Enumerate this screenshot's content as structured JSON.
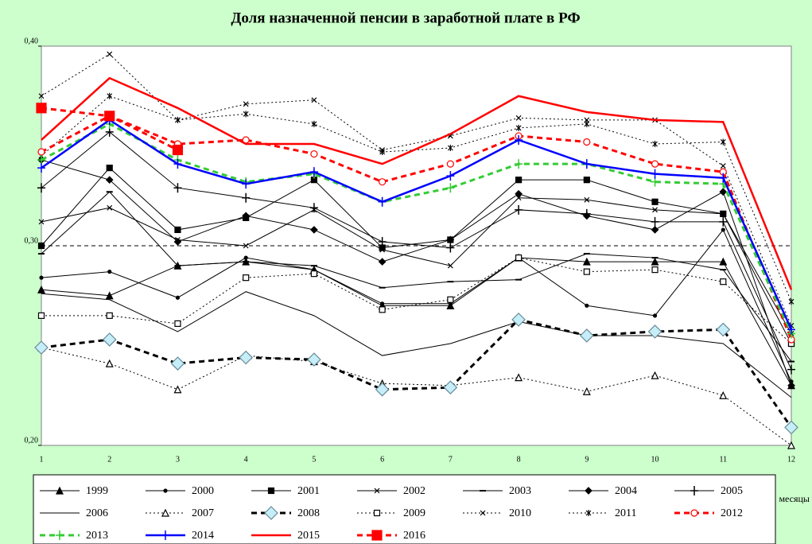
{
  "chart_data": {
    "type": "line",
    "title": "Доля назначенной пенсии в заработной плате в РФ",
    "x_label": "месяцы",
    "categories": [
      "1",
      "2",
      "3",
      "4",
      "5",
      "6",
      "7",
      "8",
      "9",
      "10",
      "11",
      "12"
    ],
    "ylim": [
      0.2,
      0.4
    ],
    "yticks": [
      {
        "value": 0.2,
        "label": "0,20"
      },
      {
        "value": 0.3,
        "label": "0,30"
      },
      {
        "value": 0.4,
        "label": "0,40"
      }
    ],
    "grid": true,
    "legend": "bottom",
    "series": [
      {
        "name": "1999",
        "color": "#000000",
        "dash": "solid",
        "marker": "triangle",
        "values": [
          0.278,
          0.275,
          0.29,
          0.292,
          0.288,
          0.27,
          0.27,
          0.294,
          0.292,
          0.292,
          0.292,
          0.23
        ]
      },
      {
        "name": "2000",
        "color": "#000000",
        "dash": "solid",
        "marker": "dot",
        "values": [
          0.284,
          0.287,
          0.274,
          0.294,
          0.288,
          0.271,
          0.271,
          0.294,
          0.27,
          0.265,
          0.308,
          0.232
        ]
      },
      {
        "name": "2001",
        "color": "#000000",
        "dash": "solid",
        "marker": "square",
        "values": [
          0.3,
          0.339,
          0.308,
          0.314,
          0.333,
          0.299,
          0.303,
          0.333,
          0.333,
          0.322,
          0.316,
          0.251
        ]
      },
      {
        "name": "2002",
        "color": "#000000",
        "dash": "solid",
        "marker": "x",
        "values": [
          0.312,
          0.319,
          0.303,
          0.3,
          0.318,
          0.298,
          0.29,
          0.324,
          0.323,
          0.318,
          0.316,
          0.256
        ]
      },
      {
        "name": "2003",
        "color": "#000000",
        "dash": "solid",
        "marker": "dash",
        "values": [
          0.296,
          0.327,
          0.29,
          0.292,
          0.29,
          0.279,
          0.282,
          0.283,
          0.296,
          0.294,
          0.288,
          0.242
        ]
      },
      {
        "name": "2004",
        "color": "#000000",
        "dash": "solid",
        "marker": "diamond",
        "values": [
          0.343,
          0.333,
          0.302,
          0.315,
          0.308,
          0.292,
          0.303,
          0.326,
          0.315,
          0.308,
          0.327,
          0.23
        ]
      },
      {
        "name": "2005",
        "color": "#000000",
        "dash": "solid",
        "marker": "plus",
        "values": [
          0.329,
          0.357,
          0.329,
          0.324,
          0.319,
          0.302,
          0.299,
          0.318,
          0.316,
          0.312,
          0.312,
          0.238
        ]
      },
      {
        "name": "2006",
        "color": "#000000",
        "dash": "solid",
        "marker": "none",
        "values": [
          0.276,
          0.273,
          0.257,
          0.277,
          0.265,
          0.245,
          0.251,
          0.262,
          0.255,
          0.255,
          0.251,
          0.224
        ]
      },
      {
        "name": "2007",
        "color": "#000000",
        "dash": "dotted",
        "marker": "triangle-open",
        "values": [
          0.249,
          0.241,
          0.228,
          0.245,
          0.242,
          0.231,
          0.23,
          0.234,
          0.227,
          0.235,
          0.225,
          0.2
        ]
      },
      {
        "name": "2008",
        "color": "#000000",
        "dash": "dashed",
        "marker": "diamond-open",
        "values": [
          0.249,
          0.253,
          0.241,
          0.244,
          0.243,
          0.228,
          0.229,
          0.263,
          0.255,
          0.257,
          0.258,
          0.209
        ]
      },
      {
        "name": "2009",
        "color": "#000000",
        "dash": "dotted",
        "marker": "square-open",
        "values": [
          0.265,
          0.265,
          0.261,
          0.284,
          0.286,
          0.268,
          0.273,
          0.294,
          0.287,
          0.288,
          0.282,
          0.251
        ]
      },
      {
        "name": "2010",
        "color": "#000000",
        "dash": "dotted",
        "marker": "x",
        "values": [
          0.375,
          0.396,
          0.363,
          0.371,
          0.373,
          0.348,
          0.355,
          0.364,
          0.363,
          0.363,
          0.34,
          0.26
        ]
      },
      {
        "name": "2011",
        "color": "#000000",
        "dash": "dotted",
        "marker": "star",
        "values": [
          0.345,
          0.375,
          0.363,
          0.366,
          0.361,
          0.347,
          0.349,
          0.359,
          0.361,
          0.351,
          0.352,
          0.272
        ]
      },
      {
        "name": "2012",
        "color": "#ff0000",
        "dash": "dashed",
        "marker": "circle-open",
        "values": [
          0.347,
          0.365,
          0.351,
          0.353,
          0.346,
          0.332,
          0.341,
          0.355,
          0.352,
          0.341,
          0.337,
          0.253
        ]
      },
      {
        "name": "2013",
        "color": "#33cc33",
        "dash": "dashed",
        "marker": "plus",
        "values": [
          0.343,
          0.361,
          0.343,
          0.332,
          0.336,
          0.322,
          0.329,
          0.341,
          0.341,
          0.332,
          0.331,
          0.256
        ]
      },
      {
        "name": "2014",
        "color": "#0000ff",
        "dash": "solid",
        "marker": "plus",
        "values": [
          0.339,
          0.363,
          0.341,
          0.331,
          0.337,
          0.322,
          0.335,
          0.353,
          0.341,
          0.336,
          0.334,
          0.258
        ]
      },
      {
        "name": "2015",
        "color": "#ff0000",
        "dash": "solid",
        "marker": "none",
        "values": [
          0.353,
          0.384,
          0.369,
          0.351,
          0.351,
          0.341,
          0.356,
          0.375,
          0.367,
          0.363,
          0.362,
          0.278
        ]
      },
      {
        "name": "2016",
        "color": "#ff0000",
        "dash": "dashed",
        "marker": "square-big",
        "values": [
          0.369,
          0.365,
          0.348,
          null,
          null,
          null,
          null,
          null,
          null,
          null,
          null,
          null
        ]
      }
    ]
  }
}
